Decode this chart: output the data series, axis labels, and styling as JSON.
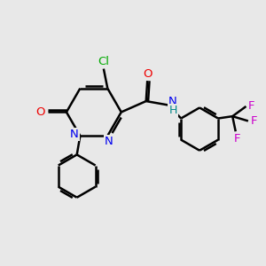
{
  "background_color": "#e8e8e8",
  "bond_color": "#000000",
  "bond_width": 1.8,
  "atom_colors": {
    "N": "#0000ee",
    "O": "#ee0000",
    "Cl": "#00aa00",
    "F": "#cc00cc",
    "H": "#008888"
  },
  "font_size": 9.5,
  "fig_size": [
    3.0,
    3.0
  ],
  "dpi": 100
}
